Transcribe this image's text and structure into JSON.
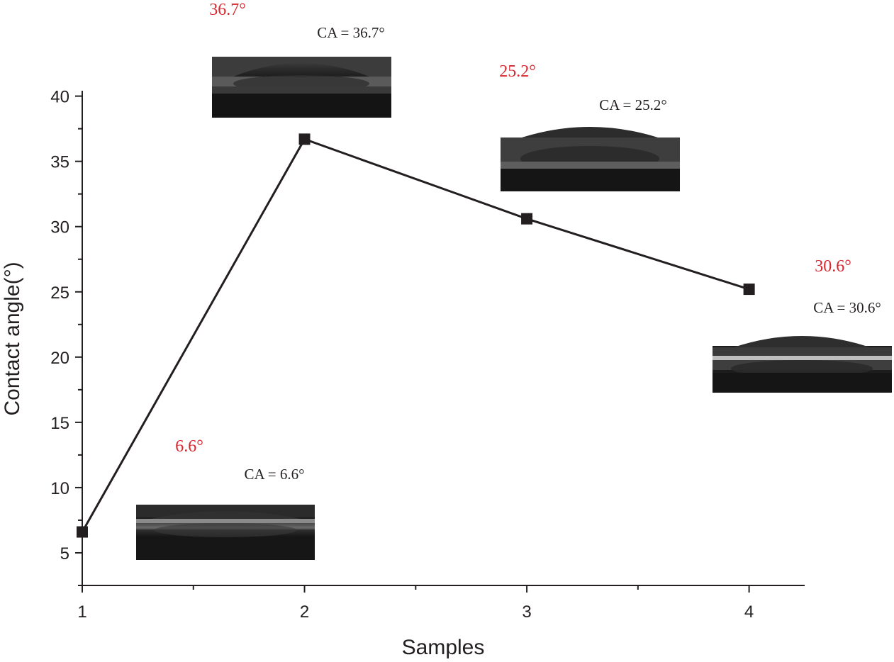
{
  "chart_data": {
    "type": "line",
    "xlabel": "Samples",
    "ylabel": "Contact angle(°)",
    "x": [
      1,
      2,
      3,
      4
    ],
    "series": [
      {
        "values": [
          6.6,
          36.7,
          30.6,
          25.2
        ]
      }
    ],
    "xlim": [
      1,
      4.25
    ],
    "ylim": [
      2.5,
      41.5
    ],
    "xticks": [
      1,
      2,
      3,
      4
    ],
    "yticks": [
      5,
      10,
      15,
      20,
      25,
      30,
      35,
      40
    ],
    "marker": "square",
    "line_color": "#231f20",
    "grid": false,
    "annotations": [
      {
        "red_label": "6.6°",
        "ca_label": "CA = 6.6°"
      },
      {
        "red_label": "36.7°",
        "ca_label": "CA = 36.7°"
      },
      {
        "red_label": "25.2°",
        "ca_label": "CA = 25.2°"
      },
      {
        "red_label": "30.6°",
        "ca_label": "CA = 30.6°"
      }
    ],
    "red_label_color": "#d7262d"
  }
}
